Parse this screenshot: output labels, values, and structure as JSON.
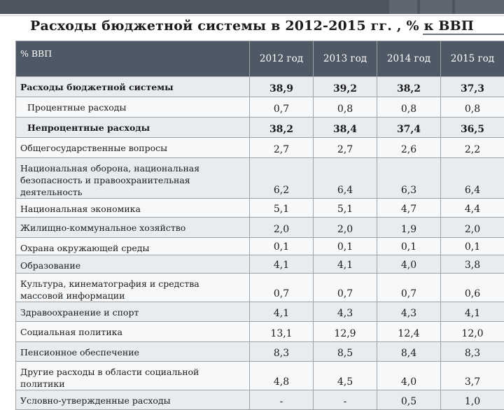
{
  "slide": {
    "title": "Расходы бюджетной системы в 2012-2015 гг. , % к ВВП"
  },
  "table": {
    "header_label": "% ВВП",
    "years": [
      "2012 год",
      "2013 год",
      "2014 год",
      "2015 год"
    ],
    "rows": [
      {
        "label": "Расходы бюджетной системы",
        "values": [
          "38,9",
          "39,2",
          "38,2",
          "37,3"
        ]
      },
      {
        "label": "Процентные расходы",
        "values": [
          "0,7",
          "0,8",
          "0,8",
          "0,8"
        ]
      },
      {
        "label": "Непроцентные расходы",
        "values": [
          "38,2",
          "38,4",
          "37,4",
          "36,5"
        ]
      },
      {
        "label": "Общегосударственные вопросы",
        "values": [
          "2,7",
          "2,7",
          "2,6",
          "2,2"
        ]
      },
      {
        "label": "Национальная оборона, национальная безопасность и правоохранительная деятельность",
        "values": [
          "6,2",
          "6,4",
          "6,3",
          "6,4"
        ]
      },
      {
        "label": "Национальная экономика",
        "values": [
          "5,1",
          "5,1",
          "4,7",
          "4,4"
        ]
      },
      {
        "label": "Жилищно-коммунальное хозяйство",
        "values": [
          "2,0",
          "2,0",
          "1,9",
          "2,0"
        ]
      },
      {
        "label": "Охрана окружающей среды",
        "values": [
          "0,1",
          "0,1",
          "0,1",
          "0,1"
        ]
      },
      {
        "label": "Образование",
        "values": [
          "4,1",
          "4,1",
          "4,0",
          "3,8"
        ]
      },
      {
        "label": "Культура, кинематография и средства массовой информации",
        "values": [
          "0,7",
          "0,7",
          "0,7",
          "0,6"
        ]
      },
      {
        "label": "Здравоохранение и спорт",
        "values": [
          "4,1",
          "4,3",
          "4,3",
          "4,1"
        ]
      },
      {
        "label": "Социальная политика",
        "values": [
          "13,1",
          "12,9",
          "12,4",
          "12,0"
        ]
      },
      {
        "label": "Пенсионное обеспечение",
        "values": [
          "8,3",
          "8,5",
          "8,4",
          "8,3"
        ]
      },
      {
        "label": "Другие расходы в области социальной политики",
        "values": [
          "4,8",
          "4,5",
          "4,0",
          "3,7"
        ]
      },
      {
        "label": "Условно-утвержденные расходы",
        "values": [
          "-",
          "-",
          "0,5",
          "1,0"
        ]
      }
    ]
  }
}
